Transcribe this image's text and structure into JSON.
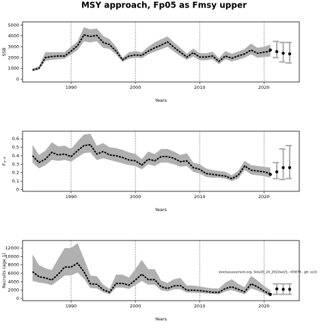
{
  "title": "MSY approach, Fp05 as Fmsy upper",
  "chart_data": [
    {
      "type": "line",
      "ylabel": "SSB",
      "xlabel": "Years",
      "xlim": [
        1982.45,
        2025.5
      ],
      "xticks": [
        1990,
        2000,
        2010,
        2020
      ],
      "ylim": [
        -250,
        5300
      ],
      "yticks": [
        0,
        1000,
        2000,
        3000,
        4000,
        5000
      ],
      "grid": true,
      "band_color": "#b0b0b0",
      "x": [
        1984,
        1985,
        1986,
        1987,
        1988,
        1989,
        1990,
        1991,
        1992,
        1993,
        1994,
        1995,
        1996,
        1997,
        1998,
        1999,
        2000,
        2001,
        2002,
        2003,
        2004,
        2005,
        2006,
        2007,
        2008,
        2009,
        2010,
        2011,
        2012,
        2013,
        2014,
        2015,
        2016,
        2017,
        2018,
        2019,
        2020,
        2021
      ],
      "series": [
        {
          "color": "#000000",
          "values": [
            850,
            1000,
            2000,
            2100,
            2150,
            2150,
            2600,
            3100,
            4100,
            3950,
            4050,
            3400,
            3200,
            2600,
            1800,
            2150,
            2250,
            2200,
            2600,
            2900,
            3150,
            3450,
            2950,
            2500,
            2050,
            2450,
            2050,
            2050,
            2150,
            1650,
            2150,
            1950,
            2150,
            2350,
            2700,
            2400,
            2500,
            2600
          ],
          "lower": [
            750,
            900,
            1700,
            1800,
            1850,
            1900,
            2300,
            2700,
            3500,
            3400,
            3500,
            2900,
            2800,
            2300,
            1600,
            1900,
            2000,
            1950,
            2300,
            2550,
            2750,
            3000,
            2550,
            2150,
            1800,
            2100,
            1750,
            1750,
            1850,
            1400,
            1850,
            1650,
            1800,
            2000,
            2300,
            2000,
            2050,
            2100
          ],
          "upper": [
            1000,
            1200,
            2500,
            2500,
            2500,
            2500,
            3000,
            3500,
            4800,
            4600,
            4700,
            4000,
            3700,
            3000,
            2000,
            2500,
            2600,
            2500,
            3000,
            3400,
            3700,
            3950,
            3400,
            2900,
            2350,
            2850,
            2400,
            2400,
            2550,
            1950,
            2600,
            2350,
            2550,
            2800,
            3300,
            2900,
            3000,
            3200
          ]
        }
      ],
      "projection": {
        "color": "#000000",
        "bar_color": "#aaaaaa",
        "x": [
          2021,
          2022,
          2023,
          2024
        ],
        "values": [
          2700,
          2550,
          2400,
          2350
        ],
        "lower": [
          null,
          2000,
          1600,
          1500
        ],
        "upper": [
          null,
          3500,
          3400,
          3400
        ]
      }
    },
    {
      "type": "line",
      "ylabel": "F₄₋₈",
      "xlabel": "Years",
      "xlim": [
        1982.45,
        2025.5
      ],
      "xticks": [
        1990,
        2000,
        2010,
        2020
      ],
      "ylim": [
        -0.02,
        0.69
      ],
      "yticks": [
        0,
        0.1,
        0.2,
        0.3,
        0.4,
        0.5,
        0.6
      ],
      "grid": true,
      "band_color": "#b0b0b0",
      "x": [
        1984,
        1985,
        1986,
        1987,
        1988,
        1989,
        1990,
        1991,
        1992,
        1993,
        1994,
        1995,
        1996,
        1997,
        1998,
        1999,
        2000,
        2001,
        2002,
        2003,
        2004,
        2005,
        2006,
        2007,
        2008,
        2009,
        2010,
        2011,
        2012,
        2013,
        2014,
        2015,
        2016,
        2017,
        2018,
        2019,
        2020,
        2021
      ],
      "series": [
        {
          "color": "#000000",
          "values": [
            0.4,
            0.32,
            0.36,
            0.44,
            0.41,
            0.42,
            0.39,
            0.46,
            0.52,
            0.53,
            0.42,
            0.45,
            0.41,
            0.4,
            0.38,
            0.35,
            0.34,
            0.29,
            0.36,
            0.34,
            0.39,
            0.39,
            0.37,
            0.33,
            0.34,
            0.26,
            0.24,
            0.19,
            0.18,
            0.17,
            0.16,
            0.13,
            0.17,
            0.28,
            0.23,
            0.22,
            0.21,
            0.19
          ],
          "lower": [
            0.32,
            0.25,
            0.29,
            0.35,
            0.34,
            0.35,
            0.33,
            0.38,
            0.43,
            0.44,
            0.35,
            0.37,
            0.35,
            0.33,
            0.31,
            0.29,
            0.28,
            0.24,
            0.3,
            0.28,
            0.32,
            0.32,
            0.3,
            0.27,
            0.28,
            0.21,
            0.19,
            0.15,
            0.14,
            0.14,
            0.13,
            0.1,
            0.13,
            0.23,
            0.18,
            0.17,
            0.16,
            0.14
          ],
          "upper": [
            0.53,
            0.41,
            0.46,
            0.56,
            0.51,
            0.52,
            0.48,
            0.57,
            0.65,
            0.66,
            0.52,
            0.55,
            0.5,
            0.49,
            0.47,
            0.44,
            0.42,
            0.36,
            0.45,
            0.42,
            0.48,
            0.48,
            0.45,
            0.41,
            0.43,
            0.32,
            0.3,
            0.25,
            0.23,
            0.22,
            0.21,
            0.17,
            0.22,
            0.34,
            0.29,
            0.28,
            0.27,
            0.26
          ]
        }
      ],
      "projection": {
        "color": "#000000",
        "bar_color": "#aaaaaa",
        "x": [
          2021,
          2022,
          2023,
          2024
        ],
        "values": [
          0.18,
          0.21,
          0.26,
          0.26
        ],
        "lower": [
          null,
          0.13,
          0.12,
          0.13
        ],
        "upper": [
          null,
          0.32,
          0.48,
          0.52
        ]
      }
    },
    {
      "type": "line",
      "ylabel": "Recruits (age 1)",
      "xlabel": "Years",
      "xlim": [
        1982.45,
        2025.5
      ],
      "xticks": [
        1990,
        2000,
        2010,
        2020
      ],
      "ylim": [
        -500,
        13800
      ],
      "yticks": [
        0,
        2000,
        4000,
        6000,
        8000,
        10000,
        12000
      ],
      "grid": true,
      "band_color": "#b0b0b0",
      "annotation": "stockassessment.org, Sole20_24_2022wz21, r45874 , git: ec2c",
      "x": [
        1984,
        1985,
        1986,
        1987,
        1988,
        1989,
        1990,
        1991,
        1992,
        1993,
        1994,
        1995,
        1996,
        1997,
        1998,
        1999,
        2000,
        2001,
        2002,
        2003,
        2004,
        2005,
        2006,
        2007,
        2008,
        2009,
        2010,
        2011,
        2012,
        2013,
        2014,
        2015,
        2016,
        2017,
        2018,
        2019,
        2020,
        2021
      ],
      "series": [
        {
          "color": "#000000",
          "values": [
            6400,
            5200,
            4900,
            4400,
            5800,
            7500,
            7500,
            8400,
            6400,
            3500,
            3400,
            2100,
            1500,
            3600,
            3600,
            3200,
            4400,
            5800,
            4500,
            4500,
            2800,
            2400,
            3000,
            3100,
            2000,
            2000,
            1900,
            1700,
            1500,
            1500,
            2400,
            2800,
            2200,
            1600,
            3500,
            2800,
            1800,
            1000
          ],
          "lower": [
            4200,
            3800,
            3600,
            3200,
            4300,
            5500,
            5500,
            6200,
            4700,
            2500,
            2400,
            1500,
            1000,
            2600,
            2600,
            2300,
            3200,
            4200,
            3300,
            3300,
            2000,
            1700,
            2200,
            2200,
            1400,
            1400,
            1300,
            1200,
            1100,
            1000,
            1700,
            2000,
            1500,
            1000,
            2400,
            1900,
            1200,
            500
          ],
          "upper": [
            10500,
            8000,
            7200,
            6800,
            9500,
            12000,
            12000,
            13200,
            9500,
            5500,
            5300,
            3300,
            2300,
            5700,
            5700,
            5000,
            7000,
            9200,
            7000,
            7000,
            4300,
            3700,
            4600,
            4900,
            3100,
            3100,
            2900,
            2600,
            2400,
            2400,
            3800,
            4600,
            3500,
            2700,
            5400,
            4300,
            3000,
            2000
          ]
        }
      ],
      "projection": {
        "color": "#000000",
        "bar_color": "#aaaaaa",
        "x": [
          2021,
          2022,
          2023,
          2024
        ],
        "values": [
          1000,
          2300,
          2200,
          2200
        ],
        "lower": [
          null,
          1000,
          1000,
          1000
        ],
        "upper": [
          null,
          3500,
          3500,
          3500
        ]
      }
    }
  ]
}
